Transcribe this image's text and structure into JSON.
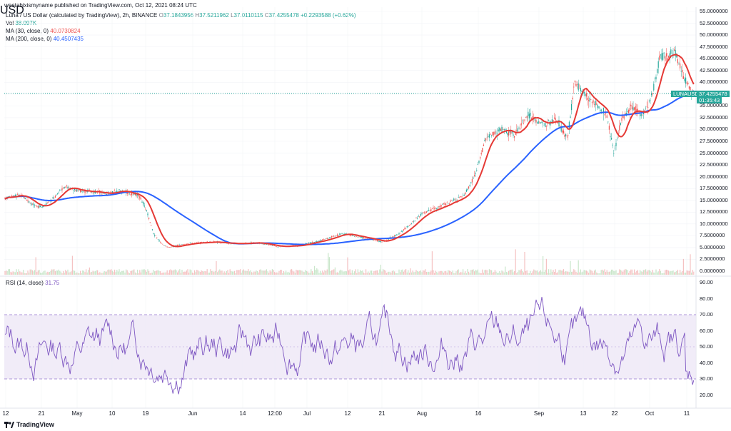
{
  "header": {
    "author_line": "weetabixismyname published on TradingView.com, Oct 12, 2021 08:24 UTC",
    "symbol_title": "Luna / US Dollar (calculated by TradingView), 2h, BINANCE",
    "ohlc": {
      "o_label": "O",
      "o": "37.1843956",
      "h_label": "H",
      "h": "37.5211962",
      "l_label": "L",
      "l": "37.0110115",
      "c_label": "C",
      "c": "37.4255478",
      "change": "+0.2293588 (+0.62%)"
    },
    "vol_label": "Vol",
    "vol_value": "38.097K",
    "ma30_label": "MA (30, close, 0)",
    "ma30_value": "40.0730824",
    "ma200_label": "MA (200, close, 0)",
    "ma200_value": "40.4507435",
    "rsi_label": "RSI (14, close)",
    "rsi_value": "31.75"
  },
  "price_axis": {
    "currency": "USD",
    "ticks": [
      "55.0000000",
      "52.5000000",
      "50.0000000",
      "47.5000000",
      "45.0000000",
      "42.5000000",
      "40.0000000",
      "37.5000000",
      "35.0000000",
      "32.5000000",
      "30.0000000",
      "27.5000000",
      "25.0000000",
      "22.5000000",
      "20.0000000",
      "17.5000000",
      "15.0000000",
      "12.5000000",
      "10.0000000",
      "7.5000000",
      "5.0000000",
      "2.5000000",
      "0.0000000"
    ],
    "current_price": "37.4255478",
    "symbol_tag": "LUNAUSD",
    "countdown": "01:35:43"
  },
  "rsi_axis": {
    "ticks": [
      "90.00",
      "80.00",
      "70.00",
      "60.00",
      "50.00",
      "40.00",
      "30.00",
      "20.00"
    ]
  },
  "x_axis": {
    "labels": [
      "12",
      "21",
      "May",
      "10",
      "19",
      "Jun",
      "14",
      "12:00",
      "Jul",
      "12",
      "21",
      "Aug",
      "16",
      "Sep",
      "13",
      "22",
      "Oct",
      "11"
    ]
  },
  "footer": {
    "brand": "TradingView"
  },
  "colors": {
    "up": "#26a69a",
    "down": "#ef5350",
    "ma30": "#e53935",
    "ma200": "#2962ff",
    "rsi": "#7e57c2",
    "rsi_band": "#ede7f6",
    "grid": "#f0f3fa"
  },
  "icons": {
    "brand_logo": "tradingview-logo-icon"
  }
}
